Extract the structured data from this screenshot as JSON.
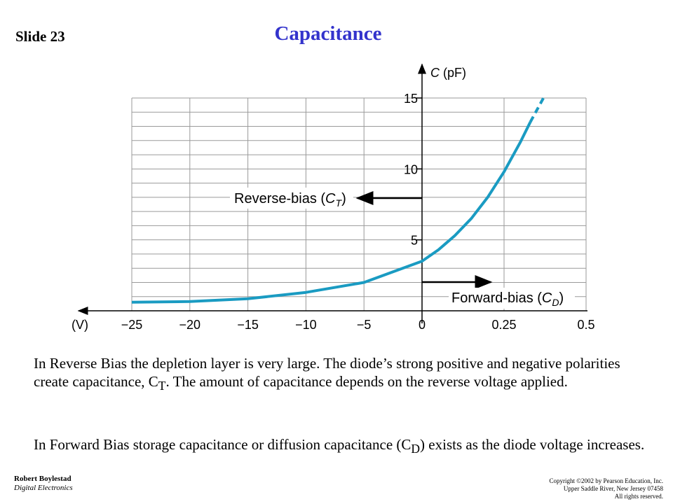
{
  "slide": {
    "number_label": "Slide 23",
    "title": "Capacitance"
  },
  "chart_data": {
    "type": "line",
    "title": "",
    "xlabel": "(V)",
    "ylabel": "C (pF)",
    "x_ticks_negative": [
      -25,
      -20,
      -15,
      -10,
      -5,
      0
    ],
    "x_ticks_positive": [
      0.25,
      0.5
    ],
    "x_tick_labels": [
      "−25",
      "−20",
      "−15",
      "−10",
      "−5",
      "0",
      "0.25",
      "0.5"
    ],
    "y_ticks": [
      5,
      10,
      15
    ],
    "y_tick_labels": [
      "5",
      "10",
      "15"
    ],
    "ylim": [
      0,
      15.5
    ],
    "grid": true,
    "series": [
      {
        "values": [
          [
            -25,
            0.6
          ],
          [
            -20,
            0.65
          ],
          [
            -15,
            0.85
          ],
          [
            -10,
            1.3
          ],
          [
            -5,
            2.0
          ],
          [
            0,
            3.5
          ],
          [
            0.05,
            4.3
          ],
          [
            0.1,
            5.3
          ],
          [
            0.15,
            6.5
          ],
          [
            0.2,
            8.0
          ],
          [
            0.25,
            9.8
          ],
          [
            0.3,
            11.9
          ],
          [
            0.33,
            13.3
          ],
          [
            0.37,
            15.0
          ]
        ],
        "dashed_from_x": 0.33
      }
    ],
    "annotations": [
      {
        "label": "Reverse-bias",
        "symbol": "C",
        "subscript": "T",
        "arrow": "left"
      },
      {
        "label": "Forward-bias",
        "symbol": "C",
        "subscript": "D",
        "arrow": "right"
      }
    ]
  },
  "paragraphs": [
    {
      "before_sub": "In Reverse Bias the depletion layer is very large. The diode’s strong positive and negative polarities create capacitance, C",
      "sub": "T",
      "after_sub": ". The amount of capacitance depends on the reverse voltage applied."
    },
    {
      "before_sub": "In Forward Bias storage capacitance or diffusion capacitance (C",
      "sub": "D",
      "after_sub": ") exists as the diode voltage increases."
    }
  ],
  "footer": {
    "author": "Robert Boylestad",
    "book": "Digital Electronics",
    "copyright_line1": "Copyright ©2002 by Pearson Education, Inc.",
    "copyright_line2": "Upper Saddle River, New Jersey 07458",
    "copyright_line3": "All rights reserved."
  },
  "colors": {
    "title": "#3333cc",
    "curve": "#1a9bc2",
    "grid": "#9a9a9a"
  }
}
